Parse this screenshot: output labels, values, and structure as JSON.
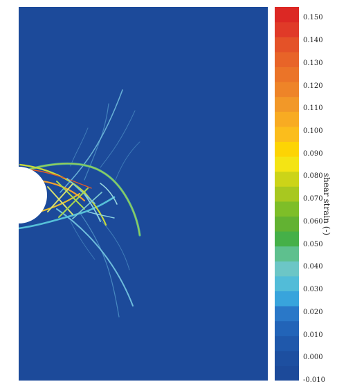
{
  "colorbar": {
    "label": "shear strain (-)",
    "min": -0.01,
    "max": 0.155,
    "ticks": [
      "-0.010",
      "0.000",
      "0.010",
      "0.020",
      "0.030",
      "0.040",
      "0.050",
      "0.060",
      "0.070",
      "0.080",
      "0.090",
      "0.100",
      "0.110",
      "0.120",
      "0.130",
      "0.140",
      "0.150"
    ],
    "colors": [
      "#1c4a9a",
      "#1d4fa0",
      "#1f58ab",
      "#2264b8",
      "#2a78c8",
      "#38a4dc",
      "#52bcd8",
      "#6cc6c6",
      "#5ec08e",
      "#45b048",
      "#62b232",
      "#7ebe28",
      "#a8c820",
      "#ccd418",
      "#f4e414",
      "#fdd404",
      "#fbbd1c",
      "#f8ab22",
      "#f29828",
      "#ee8428",
      "#eb7428",
      "#e86428",
      "#e45228",
      "#e03a28",
      "#dc2824"
    ]
  },
  "field": {
    "background_color": "#1c4a9a",
    "hole_color": "#ffffff"
  }
}
